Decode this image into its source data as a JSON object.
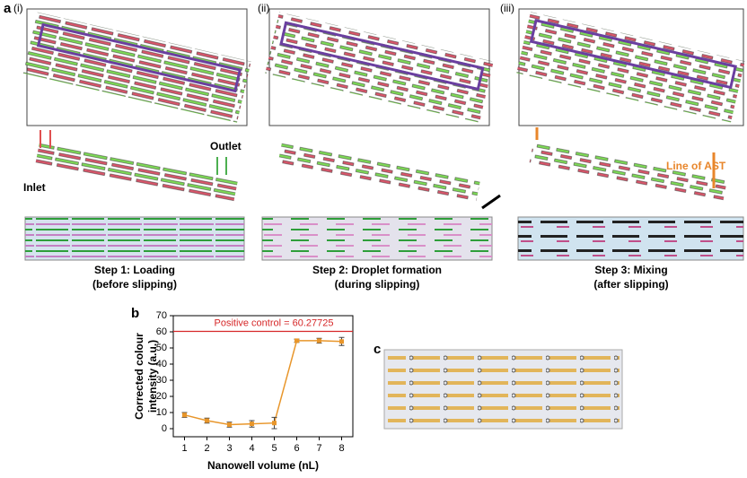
{
  "panel_a": {
    "label": "a",
    "subpanels": [
      {
        "label": "(i)",
        "caption": [
          "Step 1: Loading",
          "(before slipping)"
        ]
      },
      {
        "label": "(ii)",
        "caption": [
          "Step 2: Droplet formation",
          "(during slipping)"
        ]
      },
      {
        "label": "(iii)",
        "caption": [
          "Step 3: Mixing",
          "(after slipping)"
        ]
      }
    ],
    "annotations": {
      "inlet": "Inlet",
      "outlet": "Outlet",
      "line_of_ast": "Line of AST"
    }
  },
  "panel_b": {
    "label": "b"
  },
  "panel_c": {
    "label": "c"
  },
  "chart_data": {
    "type": "line",
    "x_label": "Nanowell volume (nL)",
    "y_label": [
      "Corrected colour",
      "intensity (a.u.)"
    ],
    "x": [
      1,
      2,
      3,
      4,
      5,
      6,
      7,
      8
    ],
    "series": [
      {
        "color": "#e8962b",
        "values": [
          8.5,
          5,
          2.5,
          3,
          3.5,
          54.5,
          54.5,
          54
        ],
        "errors": [
          1.5,
          1.5,
          1.5,
          2,
          3.5,
          1,
          1.5,
          2.5
        ]
      }
    ],
    "xlim": [
      0.5,
      8.5
    ],
    "xticks": [
      1,
      2,
      3,
      4,
      5,
      6,
      7,
      8
    ],
    "ylim": [
      -5,
      70
    ],
    "yticks": [
      0,
      10,
      20,
      30,
      40,
      50,
      60,
      70
    ],
    "reference_line": {
      "value": 60.27725,
      "label": "Positive control = 60.27725",
      "color": "#d62728"
    }
  }
}
